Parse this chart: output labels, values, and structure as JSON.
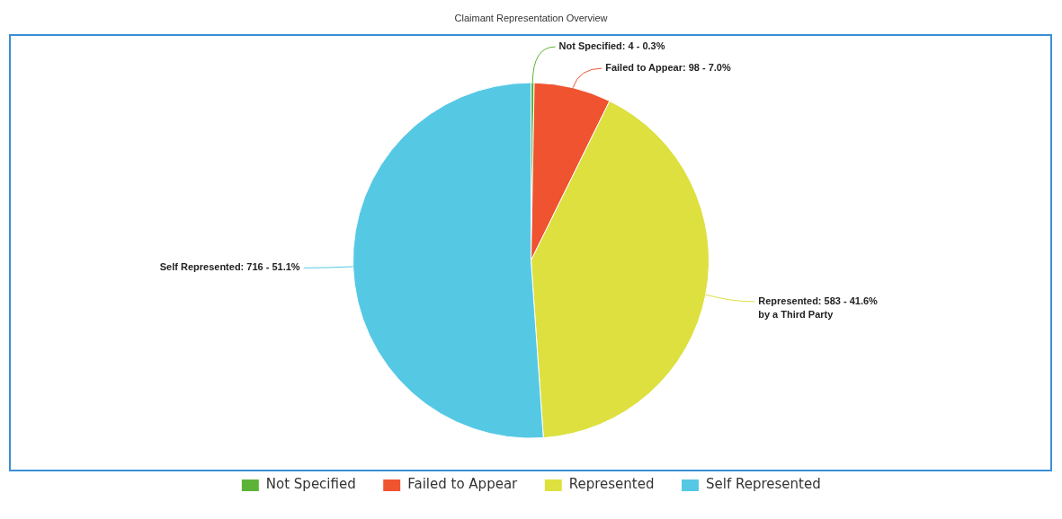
{
  "chart_data": {
    "type": "pie",
    "title": "Claimant Representation Overview",
    "categories": [
      "Not Specified",
      "Failed to Appear",
      "Represented",
      "Self Represented"
    ],
    "values": [
      4,
      98,
      583,
      716
    ],
    "colors": [
      "#5cb338",
      "#ef5330",
      "#dde03f",
      "#55c8e4"
    ],
    "value_labels": [
      "Not Specified: 4 - 0.3%",
      "Failed to Appear: 98 - 7.0%",
      "Represented: 583 - 41.6%\nby a Third Party",
      "Self Represented: 716 - 51.1%"
    ],
    "legend": "bottom"
  }
}
